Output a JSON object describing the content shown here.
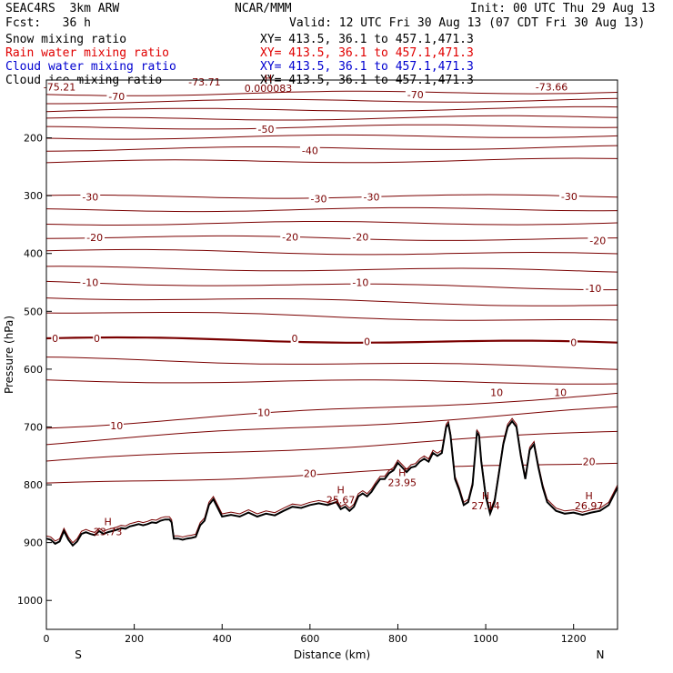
{
  "header": {
    "model": "SEAC4RS  3km ARW",
    "org": "NCAR/MMM",
    "init": "Init: 00 UTC Thu 29 Aug 13",
    "fcst": "Fcst:   36 h",
    "valid": "Valid: 12 UTC Fri 30 Aug 13 (07 CDT Fri 30 Aug 13)"
  },
  "fields": [
    {
      "name": "Snow mixing ratio",
      "color": "#000000",
      "xy": "XY= 413.5, 36.1 to 457.1,471.3"
    },
    {
      "name": "Rain water mixing ratio",
      "color": "#e00000",
      "xy": "XY= 413.5, 36.1 to 457.1,471.3"
    },
    {
      "name": "Cloud water mixing ratio",
      "color": "#0000d0",
      "xy": "XY= 413.5, 36.1 to 457.1,471.3"
    },
    {
      "name": "Cloud ice mixing ratio",
      "color": "#000000",
      "xy": "XY= 413.5, 36.1 to 457.1,471.3"
    }
  ],
  "chart_data": {
    "type": "line",
    "xlabel": "Distance (km)",
    "ylabel": "Pressure (hPa)",
    "xlim": [
      0,
      1300
    ],
    "ylim": [
      1050,
      100
    ],
    "x_ticks": [
      "0",
      "200",
      "400",
      "600",
      "800",
      "1000",
      "1200"
    ],
    "y_ticks": [
      "200",
      "300",
      "400",
      "500",
      "600",
      "700",
      "800",
      "900",
      "1000"
    ],
    "left_end_label": "S",
    "right_end_label": "N",
    "isotherm_color": "#7a0000",
    "temperature_contours": [
      {
        "label": "-70",
        "p_left": 125,
        "p_right": 120
      },
      {
        "label": "",
        "p_left": 138,
        "p_right": 134
      },
      {
        "label": "",
        "p_left": 153,
        "p_right": 149
      },
      {
        "label": "",
        "p_left": 168,
        "p_right": 164
      },
      {
        "label": "-50",
        "p_left": 183,
        "p_right": 179
      },
      {
        "label": "",
        "p_left": 200,
        "p_right": 196
      },
      {
        "label": "-40",
        "p_left": 220,
        "p_right": 216
      },
      {
        "label": "",
        "p_left": 242,
        "p_right": 238
      },
      {
        "label": "-30",
        "p_left": 302,
        "p_right": 301
      },
      {
        "label": "",
        "p_left": 325,
        "p_right": 323
      },
      {
        "label": "",
        "p_left": 348,
        "p_right": 347
      },
      {
        "label": "-20",
        "p_left": 371,
        "p_right": 376
      },
      {
        "label": "",
        "p_left": 395,
        "p_right": 402
      },
      {
        "label": "",
        "p_left": 425,
        "p_right": 430
      },
      {
        "label": "-10",
        "p_left": 450,
        "p_right": 460
      },
      {
        "label": "",
        "p_left": 475,
        "p_right": 490
      },
      {
        "label": "",
        "p_left": 500,
        "p_right": 518
      },
      {
        "label": "0",
        "p_left": 547,
        "p_right": 555,
        "freezing": true
      },
      {
        "label": "",
        "p_left": 582,
        "p_right": 598
      },
      {
        "label": "",
        "p_left": 620,
        "p_right": 623
      },
      {
        "label": "10",
        "p_left": 700,
        "p_right": 643
      },
      {
        "label": "",
        "p_left": 728,
        "p_right": 668
      },
      {
        "label": "",
        "p_left": 760,
        "p_right": 708
      },
      {
        "label": "20",
        "p_left": 800,
        "p_right": 760
      }
    ],
    "contour_labels": [
      {
        "text": "-75.21",
        "x": 30,
        "p": 112
      },
      {
        "text": "-73.71",
        "x": 360,
        "p": 103
      },
      {
        "text": "-73.66",
        "x": 1150,
        "p": 112
      },
      {
        "text": "-70",
        "x": 160,
        "p": 128
      },
      {
        "text": "-70",
        "x": 840,
        "p": 125
      },
      {
        "text": "-50",
        "x": 500,
        "p": 185
      },
      {
        "text": "-40",
        "x": 600,
        "p": 222
      },
      {
        "text": "-30",
        "x": 100,
        "p": 302
      },
      {
        "text": "-30",
        "x": 620,
        "p": 305
      },
      {
        "text": "-30",
        "x": 740,
        "p": 302
      },
      {
        "text": "-30",
        "x": 1190,
        "p": 301
      },
      {
        "text": "-20",
        "x": 110,
        "p": 372
      },
      {
        "text": "-20",
        "x": 555,
        "p": 371
      },
      {
        "text": "-20",
        "x": 715,
        "p": 371
      },
      {
        "text": "-20",
        "x": 1255,
        "p": 378
      },
      {
        "text": "-10",
        "x": 100,
        "p": 450
      },
      {
        "text": "-10",
        "x": 715,
        "p": 450
      },
      {
        "text": "-10",
        "x": 1245,
        "p": 460
      },
      {
        "text": "0",
        "x": 20,
        "p": 547
      },
      {
        "text": "0",
        "x": 115,
        "p": 547
      },
      {
        "text": "0",
        "x": 565,
        "p": 547
      },
      {
        "text": "0",
        "x": 730,
        "p": 552
      },
      {
        "text": "0",
        "x": 1200,
        "p": 554
      },
      {
        "text": "10",
        "x": 160,
        "p": 698
      },
      {
        "text": "10",
        "x": 495,
        "p": 675
      },
      {
        "text": "10",
        "x": 1025,
        "p": 640
      },
      {
        "text": "10",
        "x": 1170,
        "p": 640
      },
      {
        "text": "20",
        "x": 600,
        "p": 780
      },
      {
        "text": "20",
        "x": 1235,
        "p": 760
      }
    ],
    "maxima_labels": [
      {
        "text": "H\n23.73",
        "x": 140,
        "p": 870
      },
      {
        "text": "H\n25.67",
        "x": 670,
        "p": 815
      },
      {
        "text": "H\n23.95",
        "x": 810,
        "p": 785
      },
      {
        "text": "H\n27.14",
        "x": 1000,
        "p": 825
      },
      {
        "text": "H\n26.97",
        "x": 1235,
        "p": 825
      },
      {
        "text": "H\n0.000083",
        "x": 505,
        "p": 103
      }
    ],
    "terrain": {
      "x": [
        0,
        10,
        20,
        30,
        40,
        50,
        60,
        70,
        80,
        90,
        100,
        110,
        120,
        130,
        140,
        150,
        160,
        170,
        180,
        190,
        200,
        210,
        220,
        230,
        240,
        250,
        260,
        270,
        280,
        285,
        290,
        300,
        310,
        320,
        330,
        340,
        350,
        360,
        370,
        380,
        390,
        400,
        420,
        440,
        460,
        480,
        500,
        520,
        540,
        560,
        580,
        600,
        620,
        640,
        660,
        670,
        680,
        690,
        700,
        710,
        720,
        730,
        740,
        750,
        760,
        770,
        780,
        790,
        800,
        810,
        820,
        830,
        840,
        850,
        860,
        870,
        880,
        890,
        900,
        910,
        915,
        920,
        930,
        940,
        950,
        960,
        970,
        980,
        985,
        990,
        1000,
        1010,
        1020,
        1030,
        1040,
        1050,
        1060,
        1070,
        1080,
        1090,
        1100,
        1110,
        1120,
        1130,
        1140,
        1160,
        1180,
        1200,
        1220,
        1240,
        1260,
        1280,
        1300
      ],
      "p": [
        893,
        895,
        902,
        898,
        880,
        895,
        905,
        898,
        885,
        882,
        885,
        887,
        880,
        885,
        882,
        880,
        878,
        875,
        876,
        872,
        870,
        868,
        870,
        868,
        865,
        866,
        862,
        860,
        860,
        865,
        893,
        893,
        895,
        893,
        892,
        890,
        870,
        862,
        835,
        825,
        840,
        855,
        852,
        855,
        848,
        855,
        850,
        853,
        845,
        838,
        840,
        835,
        832,
        835,
        830,
        842,
        838,
        845,
        838,
        820,
        815,
        820,
        812,
        800,
        790,
        790,
        780,
        775,
        762,
        770,
        778,
        770,
        768,
        760,
        755,
        760,
        745,
        750,
        745,
        700,
        695,
        715,
        790,
        810,
        835,
        830,
        800,
        710,
        715,
        760,
        820,
        850,
        830,
        780,
        730,
        700,
        690,
        700,
        750,
        790,
        740,
        730,
        770,
        805,
        830,
        845,
        850,
        848,
        852,
        848,
        845,
        835,
        805
      ]
    }
  }
}
